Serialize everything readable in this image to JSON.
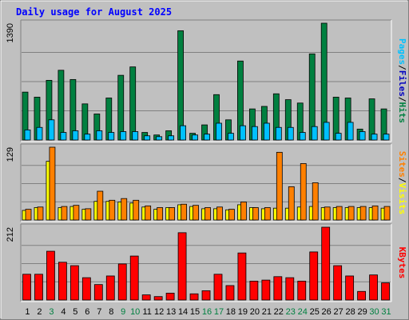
{
  "chart_data": {
    "type": "bar",
    "title": "Daily usage for August 2025",
    "categories": [
      "1",
      "2",
      "3",
      "4",
      "5",
      "6",
      "7",
      "8",
      "9",
      "10",
      "11",
      "12",
      "13",
      "14",
      "15",
      "16",
      "17",
      "18",
      "19",
      "20",
      "21",
      "22",
      "23",
      "24",
      "25",
      "26",
      "27",
      "28",
      "29",
      "30",
      "31"
    ],
    "weekend_days": [
      "3",
      "9",
      "10",
      "16",
      "17",
      "23",
      "24",
      "30",
      "31"
    ],
    "panels": [
      {
        "name": "hits-files-pages",
        "axis_max": 1390,
        "axis_max_label": "1390",
        "right_label": [
          "Pages",
          "Files",
          "Hits"
        ],
        "right_label_colors": [
          "#00c0ff",
          "#0000c0",
          "#008040"
        ],
        "series": [
          {
            "name": "Hits",
            "color": "#008040",
            "values": [
              570,
              510,
              710,
              830,
              720,
              430,
              310,
              500,
              770,
              870,
              90,
              60,
              110,
              1300,
              80,
              180,
              540,
              240,
              940,
              370,
              400,
              550,
              480,
              440,
              1025,
              1390,
              510,
              500,
              130,
              490,
              370
            ]
          },
          {
            "name": "Files",
            "color": "#00c0ff",
            "values": [
              120,
              150,
              240,
              90,
              110,
              70,
              110,
              90,
              100,
              100,
              50,
              40,
              50,
              170,
              60,
              70,
              200,
              80,
              170,
              160,
              200,
              150,
              150,
              90,
              160,
              210,
              80,
              210,
              100,
              70,
              70
            ]
          },
          {
            "name": "Pages",
            "color": "#0000c0",
            "values": [
              0,
              0,
              0,
              0,
              0,
              0,
              0,
              0,
              0,
              0,
              0,
              0,
              0,
              0,
              0,
              0,
              0,
              0,
              0,
              0,
              0,
              0,
              0,
              0,
              0,
              0,
              0,
              0,
              0,
              0,
              0
            ]
          }
        ]
      },
      {
        "name": "visits-sites",
        "axis_max": 129,
        "axis_max_label": "129",
        "right_label": [
          "Sites",
          "Visits"
        ],
        "right_label_colors": [
          "#ff8000",
          "#ffff00"
        ],
        "series": [
          {
            "name": "Visits",
            "color": "#ffff00",
            "values": [
              17,
              22,
              104,
              22,
              24,
              19,
              33,
              33,
              32,
              30,
              23,
              19,
              22,
              27,
              24,
              20,
              20,
              18,
              27,
              22,
              20,
              21,
              21,
              23,
              24,
              22,
              22,
              22,
              22,
              22,
              21
            ]
          },
          {
            "name": "Sites",
            "color": "#ff8000",
            "values": [
              19,
              23,
              129,
              24,
              26,
              20,
              51,
              35,
              38,
              35,
              25,
              22,
              22,
              28,
              26,
              22,
              23,
              19,
              32,
              22,
              22,
              120,
              59,
              100,
              66,
              23,
              24,
              24,
              24,
              25,
              24
            ]
          }
        ]
      },
      {
        "name": "kbytes",
        "axis_max": 212,
        "axis_max_label": "212",
        "right_label": [
          "KBytes"
        ],
        "right_label_colors": [
          "#ff0000"
        ],
        "series": [
          {
            "name": "KBytes",
            "color": "#ff0000",
            "values": [
              75,
              75,
              142,
              110,
              100,
              65,
              45,
              70,
              105,
              128,
              15,
              10,
              20,
              196,
              18,
              27,
              75,
              42,
              137,
              55,
              58,
              68,
              65,
              55,
              140,
              212,
              100,
              70,
              25,
              73,
              50
            ]
          }
        ]
      }
    ]
  }
}
